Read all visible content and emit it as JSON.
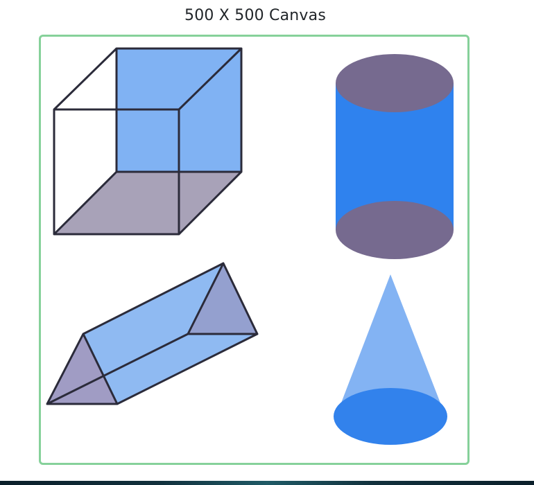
{
  "header": {
    "title": "500 X 500 Canvas"
  },
  "canvas": {
    "border_color": "#86d19a"
  },
  "shapes": [
    {
      "name": "cube",
      "face_color": "#80b2f3",
      "base_color": "#a8a2b8",
      "edge_color": "#2b2b3a"
    },
    {
      "name": "cylinder",
      "body_color": "#2f82ee",
      "cap_color": "#766a8f"
    },
    {
      "name": "triangular-prism",
      "face_color": "#8fbaf2",
      "end_color": "#94a0cf",
      "edge_color": "#2b2b3a"
    },
    {
      "name": "cone",
      "body_color": "#83b3f3",
      "base_color": "#3282ec"
    }
  ]
}
